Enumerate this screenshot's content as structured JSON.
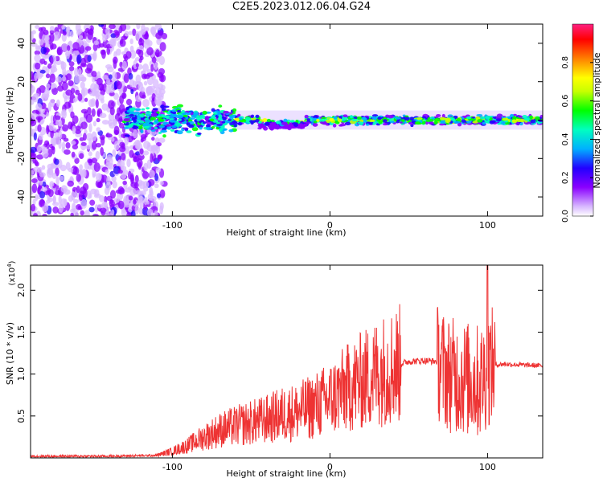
{
  "title": "C2E5.2023.012.06.04.G24",
  "chart_data": [
    {
      "type": "heatmap",
      "xlabel": "Height of straight line (km)",
      "ylabel": "Frequency (Hz)",
      "xlim": [
        -190,
        135
      ],
      "ylim": [
        -50,
        50
      ],
      "x_ticks": [
        -100,
        0,
        100
      ],
      "y_ticks": [
        -40,
        -20,
        0,
        20,
        40
      ],
      "colorbar": {
        "label": "Normalized spectral amplitude",
        "range": [
          0,
          1
        ],
        "ticks": [
          "0.0",
          "0.2",
          "0.4",
          "0.6",
          "0.8"
        ],
        "colors": [
          "#ffffff",
          "#d8b8ff",
          "#8a00ff",
          "#2200ff",
          "#00b0ff",
          "#00ffc0",
          "#00ff00",
          "#c8ff00",
          "#ffff00",
          "#ff8000",
          "#ff0000",
          "#ff2080"
        ]
      },
      "regions": [
        {
          "description": "noise",
          "x_range": [
            -190,
            -105
          ],
          "freq_range": [
            -50,
            50
          ],
          "amplitude": 0.15
        },
        {
          "description": "signal onset",
          "x_range": [
            -130,
            -60
          ],
          "freq_range": [
            -10,
            8
          ],
          "amplitude": 0.35
        },
        {
          "description": "narrow signal",
          "x_range": [
            -60,
            135
          ],
          "freq_range": [
            -3,
            3
          ],
          "amplitude": 0.55
        }
      ]
    },
    {
      "type": "line",
      "xlabel": "Height of straight line (km)",
      "ylabel": "SNR (10 * v/v)",
      "y_scale_label": "(x10",
      "y_scale_exp": "4",
      "color": "#ee3333",
      "xlim": [
        -190,
        135
      ],
      "ylim": [
        0,
        2.3
      ],
      "x_ticks": [
        -100,
        0,
        100
      ],
      "y_ticks": [
        "0.5",
        "1.0",
        "1.5",
        "2.0"
      ],
      "series": [
        {
          "x": [
            -190,
            -140,
            -110,
            -100,
            -90,
            -80,
            -70,
            -60,
            -50,
            -40,
            -30,
            -20,
            -10,
            0,
            10,
            20,
            30,
            40,
            50,
            60,
            68,
            75,
            85,
            95,
            102,
            110,
            120,
            135
          ],
          "y": [
            0.02,
            0.02,
            0.03,
            0.08,
            0.15,
            0.25,
            0.33,
            0.38,
            0.42,
            0.46,
            0.52,
            0.55,
            0.62,
            0.7,
            0.82,
            0.92,
            1.02,
            1.1,
            1.15,
            1.16,
            1.15,
            1.0,
            0.95,
            0.9,
            1.1,
            1.12,
            1.11,
            1.1
          ]
        }
      ]
    }
  ]
}
